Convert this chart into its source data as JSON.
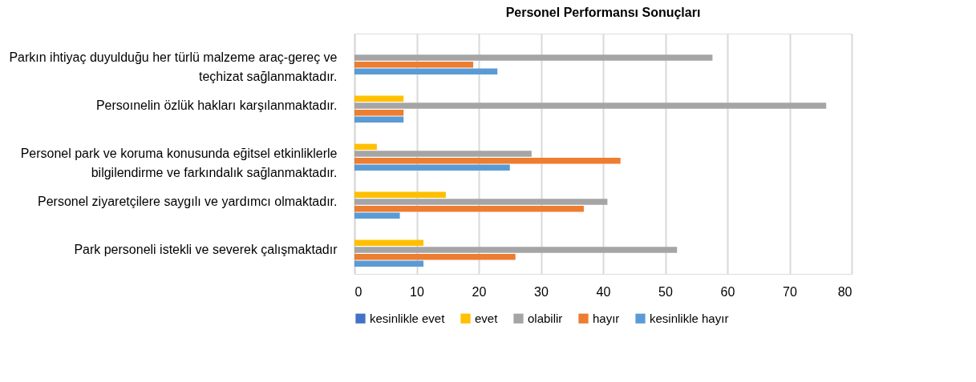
{
  "chart_data": {
    "type": "bar",
    "orientation": "horizontal",
    "title": "Personel Performansı Sonuçları",
    "categories": [
      "Parkın ihtiyaç duyulduğu her türlü malzeme araç-gereç ve teçhizat sağlanmaktadır.",
      "Persoınelin özlük hakları karşılanmaktadır.",
      "Personel park ve  koruma konusunda eğitsel etkinliklerle bilgilendirme ve farkındalık sağlanmaktadır.",
      "Personel ziyaretçilere saygılı ve yardımcı olmaktadır.",
      "Park personeli istekli ve severek  çalışmaktadır"
    ],
    "series": [
      {
        "name": "kesinlikle evet",
        "color": "#4472c4",
        "values": [
          null,
          null,
          null,
          null,
          null
        ]
      },
      {
        "name": "evet",
        "color": "#ffc000",
        "values": [
          null,
          7.9,
          3.6,
          14.7,
          11.1
        ]
      },
      {
        "name": "olabilir",
        "color": "#a5a5a5",
        "values": [
          57.6,
          75.9,
          28.5,
          40.7,
          51.9
        ]
      },
      {
        "name": "hayır",
        "color": "#ed7d31",
        "values": [
          19.1,
          7.9,
          42.8,
          36.9,
          25.9
        ]
      },
      {
        "name": "kesinlikle hayır",
        "color": "#5b9bd5",
        "values": [
          23.0,
          7.9,
          25.0,
          7.3,
          11.1
        ]
      }
    ],
    "xlim": [
      0,
      80
    ],
    "xticks": [
      0,
      10,
      20,
      30,
      40,
      50,
      60,
      70,
      80
    ],
    "grid": "x",
    "legend": "bottom"
  }
}
